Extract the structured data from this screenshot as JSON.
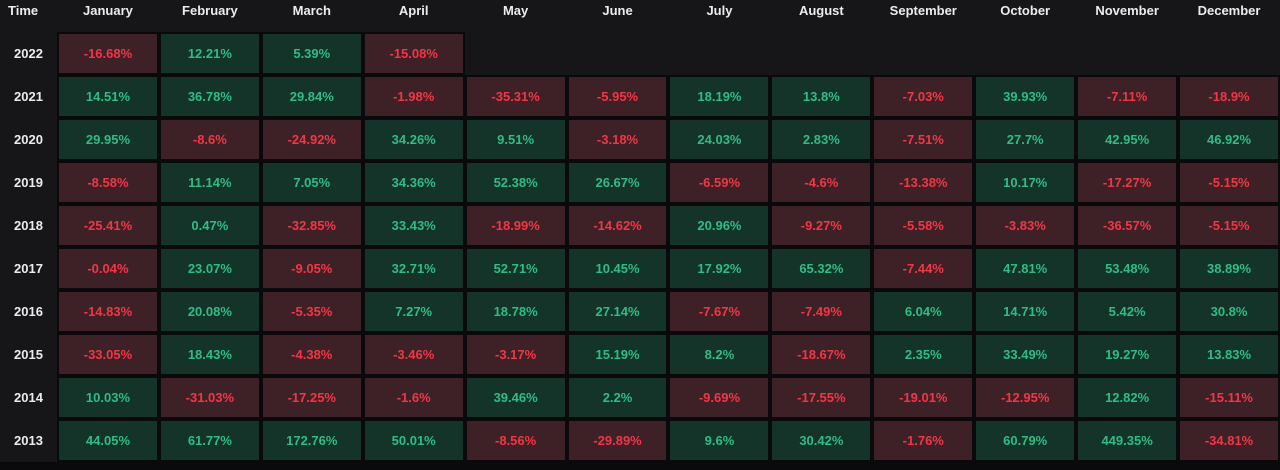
{
  "chart_data": {
    "type": "heatmap",
    "corner_label": "Time",
    "columns": [
      "January",
      "February",
      "March",
      "April",
      "May",
      "June",
      "July",
      "August",
      "September",
      "October",
      "November",
      "December"
    ],
    "value_unit": "%",
    "rows": [
      {
        "year": "2022",
        "values": [
          -16.68,
          12.21,
          5.39,
          -15.08,
          null,
          null,
          null,
          null,
          null,
          null,
          null,
          null
        ]
      },
      {
        "year": "2021",
        "values": [
          14.51,
          36.78,
          29.84,
          -1.98,
          -35.31,
          -5.95,
          18.19,
          13.8,
          -7.03,
          39.93,
          -7.11,
          -18.9
        ]
      },
      {
        "year": "2020",
        "values": [
          29.95,
          -8.6,
          -24.92,
          34.26,
          9.51,
          -3.18,
          24.03,
          2.83,
          -7.51,
          27.7,
          42.95,
          46.92
        ]
      },
      {
        "year": "2019",
        "values": [
          -8.58,
          11.14,
          7.05,
          34.36,
          52.38,
          26.67,
          -6.59,
          -4.6,
          -13.38,
          10.17,
          -17.27,
          -5.15
        ]
      },
      {
        "year": "2018",
        "values": [
          -25.41,
          0.47,
          -32.85,
          33.43,
          -18.99,
          -14.62,
          20.96,
          -9.27,
          -5.58,
          -3.83,
          -36.57,
          -5.15
        ]
      },
      {
        "year": "2017",
        "values": [
          -0.04,
          23.07,
          -9.05,
          32.71,
          52.71,
          10.45,
          17.92,
          65.32,
          -7.44,
          47.81,
          53.48,
          38.89
        ]
      },
      {
        "year": "2016",
        "values": [
          -14.83,
          20.08,
          -5.35,
          7.27,
          18.78,
          27.14,
          -7.67,
          -7.49,
          6.04,
          14.71,
          5.42,
          30.8
        ]
      },
      {
        "year": "2015",
        "values": [
          -33.05,
          18.43,
          -4.38,
          -3.46,
          -3.17,
          15.19,
          8.2,
          -18.67,
          2.35,
          33.49,
          19.27,
          13.83
        ]
      },
      {
        "year": "2014",
        "values": [
          10.03,
          -31.03,
          -17.25,
          -1.6,
          39.46,
          2.2,
          -9.69,
          -17.55,
          -19.01,
          -12.95,
          12.82,
          -15.11
        ]
      },
      {
        "year": "2013",
        "values": [
          44.05,
          61.77,
          172.76,
          50.01,
          -8.56,
          -29.89,
          9.6,
          30.42,
          -1.76,
          60.79,
          449.35,
          -34.81
        ]
      }
    ]
  },
  "colors": {
    "background": "#161619",
    "grid_line": "#0a0a0c",
    "positive_bg": "#143329",
    "positive_text": "#2ebd85",
    "negative_bg": "#3e2127",
    "negative_text": "#f23645",
    "label_text": "#ececf0"
  }
}
